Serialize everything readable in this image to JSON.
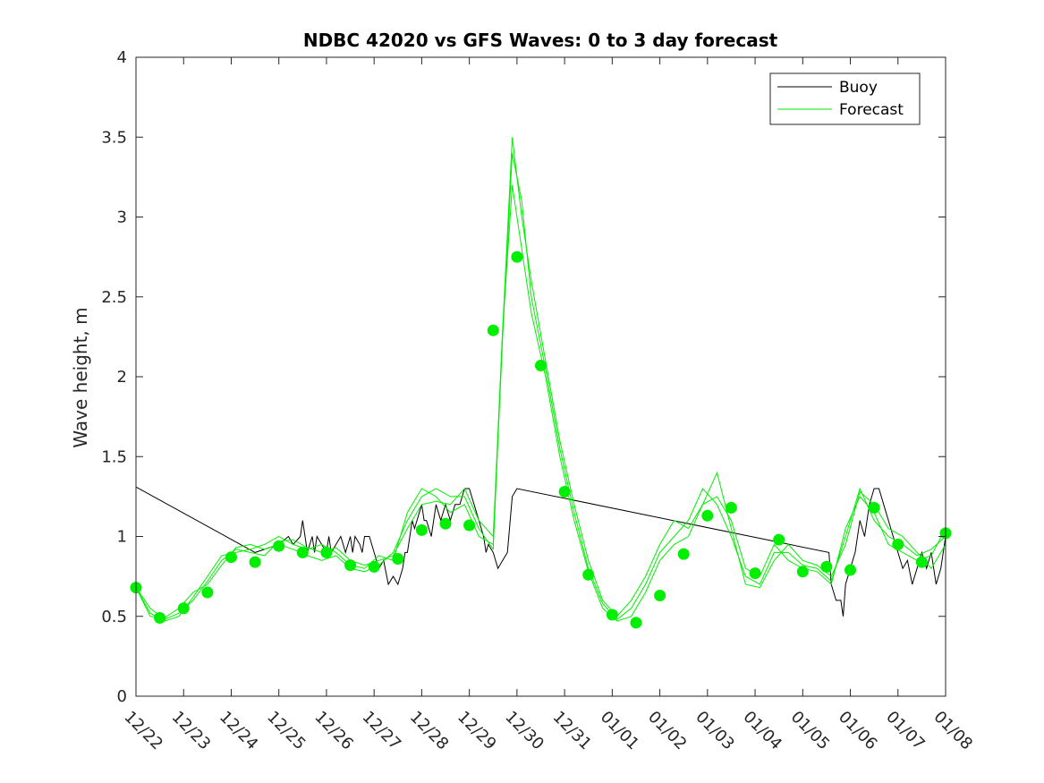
{
  "chart_data": {
    "type": "line",
    "title": "NDBC 42020 vs GFS Waves: 0 to 3 day forecast",
    "xlabel": "",
    "ylabel": "Wave height, m",
    "x_domain_days": [
      0,
      17
    ],
    "ylim": [
      0,
      4
    ],
    "yticks": [
      0,
      0.5,
      1,
      1.5,
      2,
      2.5,
      3,
      3.5,
      4
    ],
    "ytick_labels": [
      "0",
      "0.5",
      "1",
      "1.5",
      "2",
      "2.5",
      "3",
      "3.5",
      "4"
    ],
    "xtick_labels": [
      "12/22",
      "12/23",
      "12/24",
      "12/25",
      "12/26",
      "12/27",
      "12/28",
      "12/29",
      "12/30",
      "12/31",
      "01/01",
      "01/02",
      "01/03",
      "01/04",
      "01/05",
      "01/06",
      "01/07",
      "01/08"
    ],
    "colors": {
      "buoy": "#000000",
      "forecast": "#00ee00",
      "markers": "#00ee00",
      "axis": "#262626"
    },
    "legend": {
      "position": "top-right",
      "entries": [
        "Buoy",
        "Forecast"
      ]
    },
    "buoy": {
      "name": "Buoy",
      "x": [
        0.0,
        2.5,
        3.0,
        3.2,
        3.3,
        3.45,
        3.5,
        3.55,
        3.6,
        3.65,
        3.7,
        3.75,
        3.8,
        3.9,
        4.0,
        4.05,
        4.1,
        4.2,
        4.3,
        4.35,
        4.4,
        4.5,
        4.55,
        4.6,
        4.7,
        4.75,
        4.8,
        4.9,
        5.0,
        5.1,
        5.2,
        5.3,
        5.4,
        5.5,
        5.6,
        5.65,
        5.7,
        5.75,
        5.8,
        5.85,
        5.9,
        6.0,
        6.05,
        6.1,
        6.2,
        6.3,
        6.4,
        6.5,
        6.6,
        6.7,
        6.8,
        6.9,
        7.0,
        7.1,
        7.2,
        7.3,
        7.35,
        7.4,
        7.5,
        7.6,
        7.7,
        7.8,
        7.9,
        8.0,
        14.55,
        14.6,
        14.7,
        14.8,
        14.85,
        14.9,
        15.0,
        15.1,
        15.2,
        15.3,
        15.4,
        15.5,
        15.6,
        15.7,
        15.8,
        15.9,
        16.0,
        16.1,
        16.2,
        16.3,
        16.4,
        16.5,
        16.6,
        16.7,
        16.8,
        16.9,
        17.0
      ],
      "y": [
        1.31,
        0.9,
        0.95,
        1.0,
        0.95,
        1.0,
        1.1,
        1.0,
        0.9,
        0.95,
        1.0,
        0.9,
        1.0,
        0.95,
        0.9,
        1.0,
        0.9,
        0.95,
        1.0,
        0.95,
        0.9,
        1.0,
        0.9,
        1.0,
        0.95,
        0.9,
        1.0,
        1.0,
        0.9,
        0.8,
        0.85,
        0.7,
        0.75,
        0.7,
        0.8,
        0.9,
        0.9,
        1.0,
        1.1,
        1.05,
        1.1,
        1.2,
        1.1,
        1.1,
        1.0,
        1.2,
        1.1,
        1.2,
        1.1,
        1.2,
        1.2,
        1.3,
        1.3,
        1.2,
        1.1,
        1.0,
        0.9,
        0.95,
        0.9,
        0.8,
        0.85,
        0.9,
        1.25,
        1.3,
        0.9,
        0.7,
        0.6,
        0.6,
        0.5,
        0.7,
        0.8,
        0.9,
        1.1,
        1.0,
        1.2,
        1.3,
        1.3,
        1.2,
        1.1,
        1.0,
        0.9,
        0.8,
        0.85,
        0.7,
        0.8,
        0.9,
        0.8,
        0.9,
        0.7,
        0.8,
        1.0
      ]
    },
    "forecast_series": [
      {
        "name": "Forecast",
        "x": [
          0.0,
          0.3,
          0.6,
          0.9,
          1.2,
          1.5,
          1.8,
          2.1,
          2.4,
          2.7,
          3.0,
          3.3,
          3.6,
          3.9,
          4.2,
          4.5,
          4.8,
          5.1,
          5.4,
          5.7,
          6.0,
          6.3,
          6.6,
          6.9,
          7.2,
          7.5,
          7.7,
          7.9,
          8.1,
          8.3,
          8.6,
          8.9,
          9.2,
          9.5,
          9.8,
          10.1,
          10.4,
          10.7,
          11.0,
          11.3,
          11.6,
          11.9,
          12.2,
          12.5,
          12.8,
          13.1,
          13.4,
          13.7,
          14.0,
          14.3,
          14.6,
          14.9,
          15.2,
          15.5,
          15.8,
          16.1,
          16.4,
          16.7,
          17.0
        ],
        "y": [
          0.68,
          0.55,
          0.48,
          0.52,
          0.6,
          0.72,
          0.85,
          0.92,
          0.9,
          0.88,
          0.97,
          0.98,
          0.93,
          0.9,
          0.93,
          0.85,
          0.82,
          0.85,
          0.88,
          1.05,
          1.2,
          1.22,
          1.2,
          1.3,
          1.1,
          1.0,
          2.3,
          3.5,
          3.0,
          2.6,
          2.1,
          1.6,
          1.2,
          0.85,
          0.6,
          0.5,
          0.6,
          0.75,
          0.95,
          1.1,
          1.05,
          1.2,
          1.25,
          1.1,
          0.8,
          0.75,
          0.95,
          0.85,
          0.8,
          0.78,
          0.7,
          1.05,
          1.25,
          1.15,
          0.95,
          0.9,
          0.85,
          0.88,
          1.05
        ]
      },
      {
        "name": "Forecast",
        "x": [
          0.0,
          0.3,
          0.6,
          0.9,
          1.2,
          1.5,
          1.8,
          2.1,
          2.4,
          2.7,
          3.0,
          3.3,
          3.6,
          3.9,
          4.2,
          4.5,
          4.8,
          5.1,
          5.4,
          5.7,
          6.0,
          6.3,
          6.6,
          6.9,
          7.2,
          7.5,
          7.7,
          7.9,
          8.1,
          8.3,
          8.6,
          8.9,
          9.2,
          9.5,
          9.8,
          10.1,
          10.4,
          10.7,
          11.0,
          11.3,
          11.6,
          11.9,
          12.2,
          12.5,
          12.8,
          13.1,
          13.4,
          13.7,
          14.0,
          14.3,
          14.6,
          14.9,
          15.2,
          15.5,
          15.8,
          16.1,
          16.4,
          16.7,
          17.0
        ],
        "y": [
          0.68,
          0.52,
          0.47,
          0.5,
          0.62,
          0.75,
          0.88,
          0.9,
          0.92,
          0.95,
          1.0,
          0.95,
          0.92,
          0.95,
          0.9,
          0.82,
          0.8,
          0.88,
          0.85,
          1.15,
          1.3,
          1.25,
          1.15,
          1.2,
          1.0,
          0.95,
          2.25,
          3.4,
          3.1,
          2.5,
          2.05,
          1.55,
          1.15,
          0.8,
          0.58,
          0.48,
          0.55,
          0.7,
          0.9,
          1.0,
          1.1,
          1.3,
          1.2,
          1.0,
          0.75,
          0.7,
          0.9,
          0.9,
          0.82,
          0.8,
          0.72,
          1.0,
          1.3,
          1.1,
          1.0,
          0.95,
          0.88,
          0.92,
          1.0
        ]
      },
      {
        "name": "Forecast",
        "x": [
          0.0,
          0.3,
          0.6,
          0.9,
          1.2,
          1.5,
          1.8,
          2.1,
          2.4,
          2.7,
          3.0,
          3.3,
          3.6,
          3.9,
          4.2,
          4.5,
          4.8,
          5.1,
          5.4,
          5.7,
          6.0,
          6.3,
          6.6,
          6.9,
          7.2,
          7.5,
          7.7,
          7.9,
          8.1,
          8.3,
          8.6,
          8.9,
          9.2,
          9.5,
          9.8,
          10.1,
          10.4,
          10.7,
          11.0,
          11.3,
          11.6,
          11.9,
          12.2,
          12.5,
          12.8,
          13.1,
          13.4,
          13.7,
          14.0,
          14.3,
          14.6,
          14.9,
          15.2,
          15.5,
          15.8,
          16.1,
          16.4,
          16.7,
          17.0
        ],
        "y": [
          0.68,
          0.5,
          0.49,
          0.55,
          0.65,
          0.7,
          0.82,
          0.93,
          0.95,
          0.92,
          0.95,
          0.92,
          0.88,
          0.85,
          0.88,
          0.8,
          0.78,
          0.82,
          0.9,
          1.1,
          1.25,
          1.3,
          1.25,
          1.25,
          1.05,
          0.92,
          2.3,
          3.2,
          2.8,
          2.4,
          2.0,
          1.5,
          1.1,
          0.78,
          0.55,
          0.47,
          0.5,
          0.65,
          0.85,
          0.95,
          1.0,
          1.2,
          1.4,
          1.05,
          0.7,
          0.68,
          0.85,
          0.95,
          0.85,
          0.82,
          0.75,
          0.95,
          1.28,
          1.2,
          1.05,
          1.0,
          0.9,
          0.8,
          0.95
        ]
      }
    ],
    "forecast_markers": {
      "x": [
        0.0,
        0.5,
        1.0,
        1.5,
        2.0,
        2.5,
        3.0,
        3.5,
        4.0,
        4.5,
        5.0,
        5.5,
        6.0,
        6.5,
        7.0,
        7.5,
        8.0,
        8.5,
        9.0,
        9.5,
        10.0,
        10.5,
        11.0,
        11.5,
        12.0,
        12.5,
        13.0,
        13.5,
        14.0,
        14.5,
        15.0,
        15.5,
        16.0,
        16.5,
        17.0
      ],
      "y": [
        0.68,
        0.49,
        0.55,
        0.65,
        0.87,
        0.84,
        0.94,
        0.9,
        0.9,
        0.82,
        0.81,
        0.86,
        1.04,
        1.08,
        1.07,
        2.29,
        2.75,
        2.07,
        1.28,
        0.76,
        0.51,
        0.46,
        0.63,
        0.89,
        1.13,
        1.18,
        0.77,
        0.98,
        0.78,
        0.81,
        0.79,
        1.18,
        0.95,
        0.84,
        1.02
      ]
    }
  }
}
